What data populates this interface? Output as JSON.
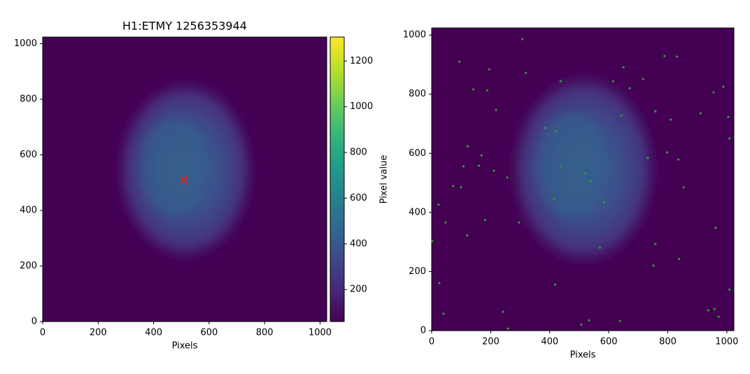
{
  "chart_data": [
    {
      "type": "image",
      "title": "H1:ETMY 1256353944",
      "xlabel": "Pixels",
      "xlim": [
        0,
        1024
      ],
      "ylim": [
        0,
        1024
      ],
      "xticks": [
        0,
        200,
        400,
        600,
        800,
        1000
      ],
      "yticks": [
        0,
        200,
        400,
        600,
        800,
        1000
      ],
      "colorbar": {
        "label": "Pixel value",
        "lim": [
          60,
          1305
        ],
        "ticks": [
          200,
          400,
          600,
          800,
          1000,
          1200
        ]
      },
      "marker": {
        "x": 510,
        "y": 510,
        "color": "#d62728"
      }
    },
    {
      "type": "image",
      "xlabel": "Pixels",
      "xlim": [
        0,
        1024
      ],
      "ylim": [
        0,
        1024
      ],
      "xticks": [
        0,
        200,
        400,
        600,
        800,
        1000
      ],
      "yticks": [
        0,
        200,
        400,
        600,
        800,
        1000
      ],
      "points": {
        "color": "#2ca02c",
        "x": [
          307,
          94,
          195,
          319,
          141,
          188,
          437,
          615,
          650,
          716,
          789,
          831,
          988,
          955,
          671,
          218,
          758,
          911,
          810,
          1005,
          643,
          385,
          420,
          1009,
          122,
          169,
          798,
          108,
          160,
          211,
          437,
          521,
          836,
          732,
          256,
          538,
          73,
          99,
          854,
          415,
          584,
          23,
          181,
          47,
          296,
          120,
          2,
          758,
          962,
          570,
          751,
          838,
          26,
          418,
          1009,
          242,
          937,
          958,
          972,
          258,
          507,
          533,
          638,
          40
        ],
        "y": [
          986,
          910,
          884,
          872,
          816,
          813,
          844,
          844,
          891,
          851,
          929,
          927,
          825,
          806,
          820,
          747,
          742,
          735,
          714,
          723,
          728,
          686,
          674,
          650,
          624,
          593,
          603,
          556,
          558,
          541,
          556,
          532,
          579,
          584,
          518,
          506,
          489,
          485,
          485,
          447,
          435,
          426,
          374,
          366,
          366,
          322,
          303,
          293,
          348,
          281,
          220,
          243,
          161,
          156,
          139,
          64,
          69,
          73,
          47,
          7,
          21,
          35,
          33,
          57
        ]
      }
    }
  ]
}
